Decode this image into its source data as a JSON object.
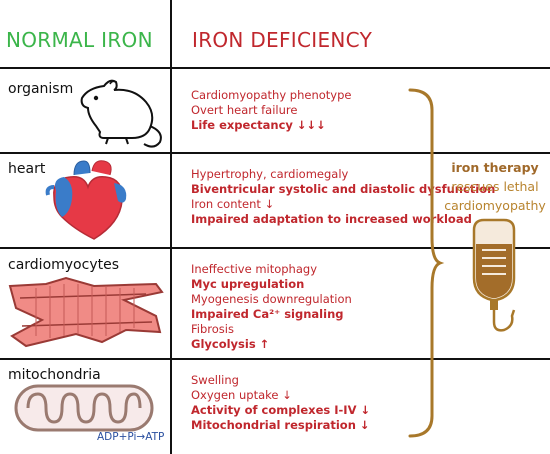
{
  "headers": {
    "normal": "NORMAL IRON",
    "deficiency": "IRON DEFICIENCY"
  },
  "rows": [
    {
      "label": "organism",
      "items": [
        {
          "text": "Cardiomyopathy phenotype",
          "bold": false
        },
        {
          "text": "Overt heart failure",
          "bold": false
        },
        {
          "text": "Life expectancy ↓↓↓",
          "bold": true
        }
      ]
    },
    {
      "label": "heart",
      "items": [
        {
          "text": "Hypertrophy, cardiomegaly",
          "bold": false
        },
        {
          "text": "Biventricular systolic and diastolic dysfunction",
          "bold": true
        },
        {
          "text": "Iron content ↓",
          "bold": false
        },
        {
          "text": "Impaired adaptation to increased workload",
          "bold": true
        }
      ]
    },
    {
      "label": "cardiomyocytes",
      "items": [
        {
          "text": "Ineffective mitophagy",
          "bold": false
        },
        {
          "text": "Myc upregulation",
          "bold": true
        },
        {
          "text": "Myogenesis downregulation",
          "bold": false
        },
        {
          "text": "Impaired Ca²⁺ signaling",
          "bold": true
        },
        {
          "text": "Fibrosis",
          "bold": false
        },
        {
          "text": "Glycolysis ↑",
          "bold": true
        }
      ]
    },
    {
      "label": "mitochondria",
      "items": [
        {
          "text": "Swelling",
          "bold": false
        },
        {
          "text": "Oxygen uptake ↓",
          "bold": false
        },
        {
          "text": "Activity of complexes I-IV ↓",
          "bold": true
        },
        {
          "text": "Mitochondrial respiration ↓",
          "bold": true
        }
      ]
    }
  ],
  "therapy": {
    "line1": "iron therapy",
    "line2": "rescues lethal",
    "line3": "cardiomyopathy"
  },
  "mito_caption": "ADP+Pi→ATP",
  "icons": {
    "organism": "mouse-icon",
    "heart": "heart-icon",
    "cardiomyocytes": "cardiomyocyte-icon",
    "mitochondria": "mitochondrion-icon",
    "therapy": "iv-bag-icon"
  },
  "colors": {
    "normal": "#3bb54a",
    "deficiency": "#c0272d",
    "therapy": "#b8842f",
    "caption": "#2b50a0"
  }
}
